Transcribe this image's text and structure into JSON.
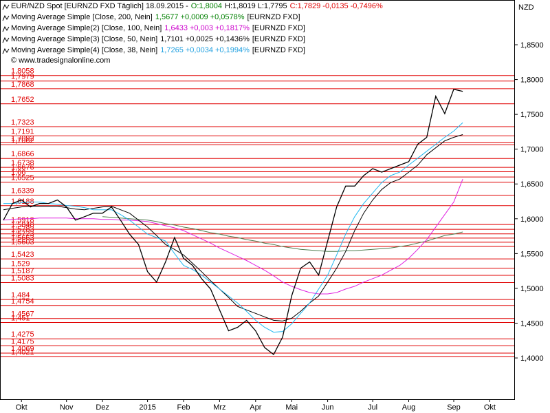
{
  "chart_data": {
    "type": "line",
    "header": [
      {
        "text": "EUR/NZD Spot [EURNZD FXD  Täglich]  18.09.2015 -",
        "color": "#000000"
      },
      {
        "text": "O:1,8004",
        "color": "#008000"
      },
      {
        "text": "H:1,8019 L:1,7795",
        "color": "#000000"
      },
      {
        "text": "C:1,7829 -0,0135 -0,7496%",
        "color": "#e00000"
      }
    ],
    "watermark": "© www.tradesignalonline.com",
    "y_axis_label": "NZD",
    "categories": [
      null,
      null,
      "Okt",
      null,
      null,
      null,
      null,
      "Nov",
      null,
      null,
      null,
      "Dez",
      null,
      null,
      null,
      null,
      "2015",
      null,
      null,
      null,
      "Feb",
      null,
      null,
      null,
      "Mrz",
      null,
      null,
      null,
      "Apr",
      null,
      null,
      null,
      "Mai",
      null,
      null,
      null,
      "Jun",
      null,
      null,
      null,
      null,
      "Jul",
      null,
      null,
      null,
      "Aug",
      null,
      null,
      null,
      null,
      "Sep",
      null,
      null,
      null,
      "Okt",
      null
    ],
    "series": [
      {
        "name": "EUR/NZD Spot",
        "color": "#000000",
        "values": [
          1.598,
          1.622,
          1.627,
          1.617,
          1.622,
          1.622,
          1.627,
          1.617,
          1.598,
          1.603,
          1.608,
          1.608,
          1.617,
          1.598,
          1.578,
          1.563,
          1.524,
          1.509,
          1.538,
          1.573,
          1.543,
          1.533,
          1.514,
          1.499,
          1.469,
          1.439,
          1.444,
          1.454,
          1.439,
          1.415,
          1.405,
          1.43,
          1.489,
          1.529,
          1.538,
          1.519,
          1.568,
          1.617,
          1.647,
          1.647,
          1.662,
          1.672,
          1.667,
          1.672,
          1.677,
          1.682,
          1.707,
          1.717,
          1.776,
          1.751,
          1.786,
          1.783,
          null,
          null,
          null,
          null
        ]
      },
      {
        "name": "Moving Average Simple [Close, 200, Nein]",
        "stats": "1,5677 +0,0009 +0,0578%",
        "stats_color": "#008000",
        "source": "[EURNZD FXD]",
        "color": "#4f7d4f",
        "values": [
          null,
          null,
          null,
          null,
          null,
          null,
          null,
          null,
          null,
          null,
          null,
          1.603,
          1.602,
          1.601,
          1.6,
          1.599,
          1.598,
          1.596,
          1.593,
          1.591,
          1.588,
          1.586,
          1.583,
          1.58,
          1.578,
          1.575,
          1.573,
          1.57,
          1.568,
          1.565,
          1.563,
          1.56,
          1.558,
          1.556,
          1.555,
          1.554,
          1.553,
          1.553,
          1.554,
          1.554,
          1.555,
          1.556,
          1.557,
          1.558,
          1.56,
          1.562,
          1.565,
          1.568,
          1.572,
          1.576,
          1.578,
          1.581,
          null,
          null,
          null,
          null
        ]
      },
      {
        "name": "Moving Average Simple(2) [Close, 100, Nein]",
        "stats": "1,6433 +0,003 +0,1817%",
        "stats_color": "#cc00cc",
        "source": "[EURNZD FXD]",
        "color": "#e020e0",
        "values": [
          1.598,
          1.599,
          1.6,
          1.6,
          1.601,
          1.601,
          1.601,
          1.601,
          1.6,
          1.6,
          1.6,
          1.599,
          1.599,
          1.598,
          1.598,
          1.597,
          1.596,
          1.593,
          1.59,
          1.587,
          1.583,
          1.577,
          1.571,
          1.565,
          1.558,
          1.552,
          1.546,
          1.54,
          1.533,
          1.526,
          1.518,
          1.509,
          1.503,
          1.498,
          1.494,
          1.492,
          1.492,
          1.494,
          1.499,
          1.503,
          1.509,
          1.514,
          1.519,
          1.526,
          1.533,
          1.543,
          1.556,
          1.57,
          1.588,
          1.606,
          1.624,
          1.657,
          null,
          null,
          null,
          null
        ]
      },
      {
        "name": "Moving Average Simple(3) [Close, 50, Nein]",
        "stats": "1,7101 +0,0025 +0,1436%",
        "stats_color": "#000000",
        "source": "[EURNZD FXD]",
        "color": "#000000",
        "values": [
          1.613,
          1.615,
          1.617,
          1.618,
          1.618,
          1.618,
          1.618,
          1.616,
          1.614,
          1.613,
          1.615,
          1.617,
          1.618,
          1.613,
          1.608,
          1.598,
          1.588,
          1.576,
          1.563,
          1.556,
          1.548,
          1.536,
          1.524,
          1.511,
          1.499,
          1.487,
          1.474,
          1.469,
          1.464,
          1.459,
          1.454,
          1.453,
          1.457,
          1.467,
          1.479,
          1.489,
          1.509,
          1.529,
          1.553,
          1.583,
          1.608,
          1.627,
          1.642,
          1.652,
          1.657,
          1.667,
          1.677,
          1.692,
          1.702,
          1.712,
          1.717,
          1.721,
          null,
          null,
          null,
          null
        ]
      },
      {
        "name": "Moving Average Simple(4) [Close, 38, Nein]",
        "stats": "1,7265 +0,0034 +0,1994%",
        "stats_color": "#20a0e0",
        "source": "[EURNZD FXD]",
        "color": "#20b8f0",
        "values": [
          1.622,
          1.622,
          1.623,
          1.624,
          1.624,
          1.622,
          1.621,
          1.619,
          1.618,
          1.616,
          1.613,
          1.613,
          1.613,
          1.606,
          1.598,
          1.588,
          1.578,
          1.573,
          1.568,
          1.55,
          1.533,
          1.527,
          1.519,
          1.509,
          1.499,
          1.489,
          1.479,
          1.467,
          1.454,
          1.444,
          1.437,
          1.438,
          1.449,
          1.464,
          1.479,
          1.499,
          1.519,
          1.548,
          1.578,
          1.603,
          1.622,
          1.637,
          1.652,
          1.662,
          1.667,
          1.677,
          1.687,
          1.697,
          1.707,
          1.717,
          1.726,
          1.738,
          null,
          null,
          null,
          null
        ]
      }
    ],
    "levels_color": "#e00000",
    "levels": [
      {
        "value": 1.8058,
        "label": "1,8058"
      },
      {
        "value": 1.7979,
        "label": "1,7979"
      },
      {
        "value": 1.7868,
        "label": "1,7868"
      },
      {
        "value": 1.7652,
        "label": "1,7652"
      },
      {
        "value": 1.7323,
        "label": "1,7323"
      },
      {
        "value": 1.7191,
        "label": "1,7191"
      },
      {
        "value": 1.7092,
        "label": "1,7092"
      },
      {
        "value": 1.7062,
        "label": "1,7062"
      },
      {
        "value": 1.6866,
        "label": "1,6866"
      },
      {
        "value": 1.6738,
        "label": "1,6738"
      },
      {
        "value": 1.6676,
        "label": "1,6676"
      },
      {
        "value": 1.66,
        "label": "1,66"
      },
      {
        "value": 1.6525,
        "label": "1,6525"
      },
      {
        "value": 1.6339,
        "label": "1,6339"
      },
      {
        "value": 1.6188,
        "label": "1,6188"
      },
      {
        "value": 1.5918,
        "label": "1,5918"
      },
      {
        "value": 1.5848,
        "label": "1,5848"
      },
      {
        "value": 1.5783,
        "label": "1,5783"
      },
      {
        "value": 1.5723,
        "label": "1,5723"
      },
      {
        "value": 1.5663,
        "label": "1,5663"
      },
      {
        "value": 1.5603,
        "label": "1,5603"
      },
      {
        "value": 1.5423,
        "label": "1,5423"
      },
      {
        "value": 1.529,
        "label": "1,529"
      },
      {
        "value": 1.5187,
        "label": "1,5187"
      },
      {
        "value": 1.5083,
        "label": "1,5083"
      },
      {
        "value": 1.484,
        "label": "1,484"
      },
      {
        "value": 1.4754,
        "label": "1,4754"
      },
      {
        "value": 1.4567,
        "label": "1,4567"
      },
      {
        "value": 1.451,
        "label": "1,451"
      },
      {
        "value": 1.4275,
        "label": "1,4275"
      },
      {
        "value": 1.4175,
        "label": "1,4175"
      },
      {
        "value": 1.4069,
        "label": "1,4069"
      },
      {
        "value": 1.4021,
        "label": "1,4021"
      }
    ],
    "ylim": [
      1.3407,
      1.9143
    ],
    "yticks": [
      {
        "value": 1.4,
        "label": "1,4000"
      },
      {
        "value": 1.45,
        "label": "1,4500"
      },
      {
        "value": 1.5,
        "label": "1,5000"
      },
      {
        "value": 1.55,
        "label": "1,5500"
      },
      {
        "value": 1.6,
        "label": "1,6000"
      },
      {
        "value": 1.65,
        "label": "1,6500"
      },
      {
        "value": 1.7,
        "label": "1,7000"
      },
      {
        "value": 1.75,
        "label": "1,7500"
      },
      {
        "value": 1.8,
        "label": "1,8000"
      },
      {
        "value": 1.85,
        "label": "1,8500"
      }
    ]
  }
}
